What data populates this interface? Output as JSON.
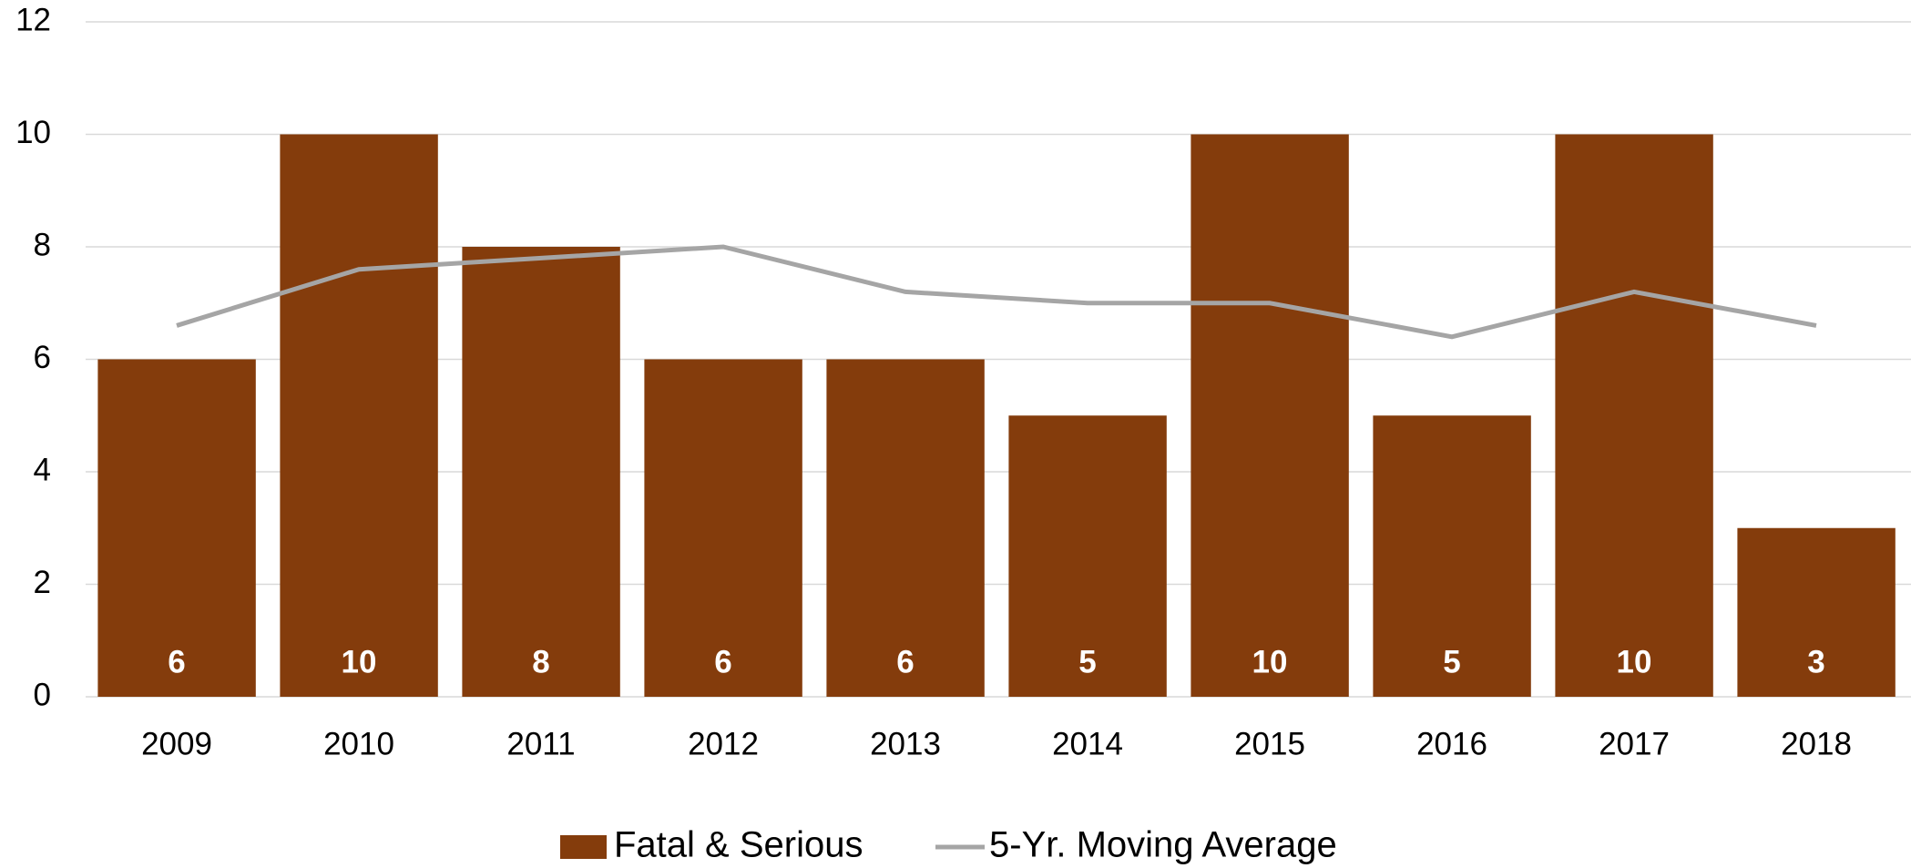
{
  "chart_data": {
    "type": "bar",
    "categories": [
      "2009",
      "2010",
      "2011",
      "2012",
      "2013",
      "2014",
      "2015",
      "2016",
      "2017",
      "2018"
    ],
    "series": [
      {
        "name": "Fatal & Serious",
        "type": "bar",
        "color": "#843c0c",
        "values": [
          6,
          10,
          8,
          6,
          6,
          5,
          10,
          5,
          10,
          3
        ]
      },
      {
        "name": "5-Yr. Moving Average",
        "type": "line",
        "color": "#a5a5a5",
        "values": [
          6.6,
          7.6,
          7.8,
          8.0,
          7.2,
          7.0,
          7.0,
          6.4,
          7.2,
          6.6
        ]
      }
    ],
    "ylim": [
      0,
      12
    ],
    "yticks": [
      0,
      2,
      4,
      6,
      8,
      10,
      12
    ],
    "grid": true,
    "legend": "bottom"
  }
}
